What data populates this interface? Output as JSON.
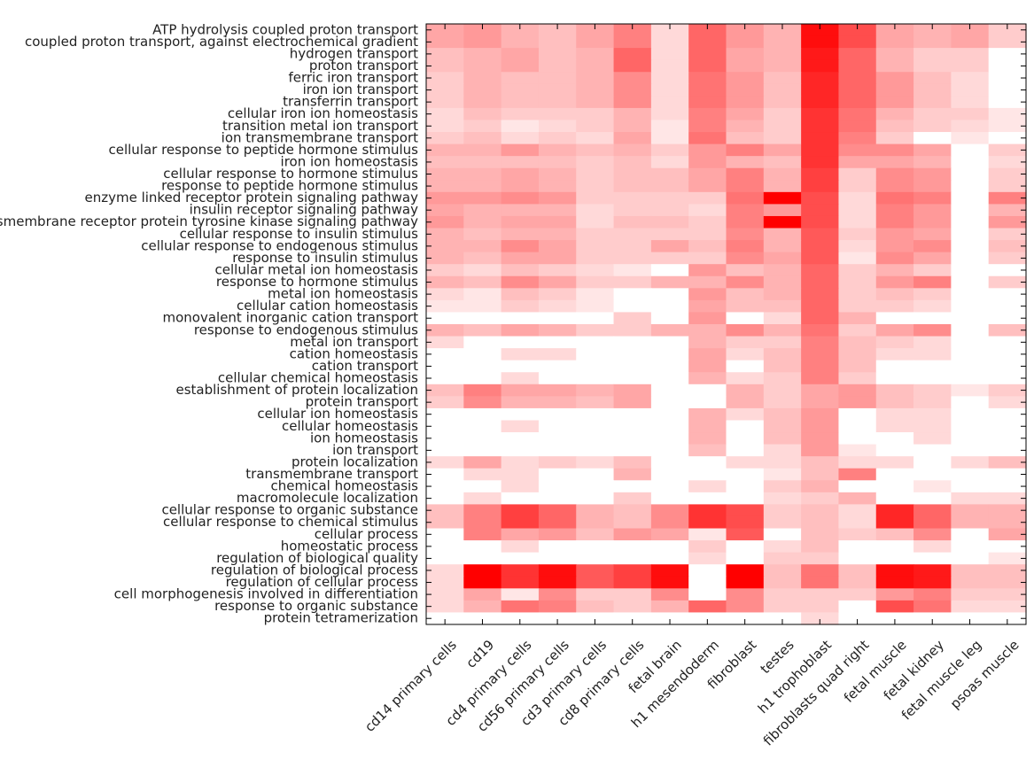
{
  "chart_data": {
    "type": "heatmap",
    "title": "",
    "xlabel": "",
    "ylabel": "",
    "colormap": {
      "low": "#ffffff",
      "high": "#ff0000"
    },
    "value_range": [
      0,
      1
    ],
    "rows": [
      "ATP hydrolysis coupled proton transport",
      "coupled proton transport, against electrochemical gradient",
      "hydrogen transport",
      "proton transport",
      "ferric iron transport",
      "iron ion transport",
      "transferrin transport",
      "cellular iron ion homeostasis",
      "transition metal ion transport",
      "ion transmembrane transport",
      "cellular response to peptide hormone stimulus",
      "iron ion homeostasis",
      "cellular response to hormone stimulus",
      "response to peptide hormone stimulus",
      "enzyme linked receptor protein signaling pathway",
      "insulin receptor signaling pathway",
      "transmembrane receptor protein tyrosine kinase signaling pathway",
      "cellular response to insulin stimulus",
      "cellular response to endogenous stimulus",
      "response to insulin stimulus",
      "cellular metal ion homeostasis",
      "response to hormone stimulus",
      "metal ion homeostasis",
      "cellular cation homeostasis",
      "monovalent inorganic cation transport",
      "response to endogenous stimulus",
      "metal ion transport",
      "cation homeostasis",
      "cation transport",
      "cellular chemical homeostasis",
      "establishment of protein localization",
      "protein transport",
      "cellular ion homeostasis",
      "cellular homeostasis",
      "ion homeostasis",
      "ion transport",
      "protein localization",
      "transmembrane transport",
      "chemical homeostasis",
      "macromolecule localization",
      "cellular response to organic substance",
      "cellular response to chemical stimulus",
      "cellular process",
      "homeostatic process",
      "regulation of biological quality",
      "regulation of biological process",
      "regulation of cellular process",
      "cell morphogenesis involved in differentiation",
      "response to organic substance",
      "protein tetramerization"
    ],
    "columns": [
      "cd14 primary cells",
      "cd19",
      "cd4 primary cells",
      "cd56 primary cells",
      "cd3 primary cells",
      "cd8 primary cells",
      "fetal brain",
      "h1 mesendoderm",
      "fibroblast",
      "testes",
      "h1 trophoblast",
      "fibroblasts quad right",
      "fetal muscle",
      "fetal kidney",
      "fetal muscle leg",
      "psoas muscle"
    ],
    "values": [
      [
        0.35,
        0.4,
        0.3,
        0.25,
        0.35,
        0.5,
        0.15,
        0.6,
        0.4,
        0.3,
        0.95,
        0.7,
        0.35,
        0.3,
        0.35,
        0.2
      ],
      [
        0.35,
        0.4,
        0.3,
        0.25,
        0.35,
        0.5,
        0.15,
        0.6,
        0.4,
        0.3,
        0.95,
        0.7,
        0.35,
        0.3,
        0.35,
        0.2
      ],
      [
        0.25,
        0.3,
        0.35,
        0.25,
        0.3,
        0.6,
        0.15,
        0.6,
        0.35,
        0.3,
        0.9,
        0.6,
        0.3,
        0.2,
        0.2,
        0.0
      ],
      [
        0.25,
        0.3,
        0.35,
        0.25,
        0.3,
        0.6,
        0.15,
        0.6,
        0.35,
        0.3,
        0.9,
        0.6,
        0.3,
        0.2,
        0.2,
        0.0
      ],
      [
        0.2,
        0.3,
        0.25,
        0.25,
        0.3,
        0.45,
        0.15,
        0.55,
        0.4,
        0.25,
        0.85,
        0.6,
        0.4,
        0.25,
        0.15,
        0.0
      ],
      [
        0.2,
        0.3,
        0.25,
        0.25,
        0.3,
        0.45,
        0.15,
        0.55,
        0.4,
        0.25,
        0.85,
        0.6,
        0.4,
        0.25,
        0.15,
        0.0
      ],
      [
        0.2,
        0.3,
        0.25,
        0.25,
        0.3,
        0.45,
        0.15,
        0.55,
        0.4,
        0.25,
        0.85,
        0.6,
        0.4,
        0.25,
        0.15,
        0.0
      ],
      [
        0.15,
        0.25,
        0.2,
        0.2,
        0.2,
        0.3,
        0.15,
        0.5,
        0.35,
        0.2,
        0.8,
        0.55,
        0.3,
        0.2,
        0.2,
        0.1
      ],
      [
        0.15,
        0.2,
        0.1,
        0.15,
        0.2,
        0.3,
        0.1,
        0.5,
        0.3,
        0.2,
        0.8,
        0.55,
        0.25,
        0.2,
        0.15,
        0.1
      ],
      [
        0.2,
        0.25,
        0.15,
        0.2,
        0.15,
        0.35,
        0.1,
        0.55,
        0.25,
        0.2,
        0.8,
        0.5,
        0.2,
        0.0,
        0.1,
        0.0
      ],
      [
        0.3,
        0.3,
        0.4,
        0.3,
        0.25,
        0.3,
        0.2,
        0.4,
        0.5,
        0.35,
        0.8,
        0.45,
        0.45,
        0.35,
        0.0,
        0.2
      ],
      [
        0.25,
        0.25,
        0.25,
        0.25,
        0.2,
        0.25,
        0.15,
        0.4,
        0.3,
        0.25,
        0.8,
        0.35,
        0.35,
        0.3,
        0.0,
        0.15
      ],
      [
        0.3,
        0.3,
        0.35,
        0.3,
        0.2,
        0.25,
        0.25,
        0.35,
        0.5,
        0.3,
        0.75,
        0.2,
        0.45,
        0.4,
        0.0,
        0.2
      ],
      [
        0.3,
        0.3,
        0.35,
        0.3,
        0.2,
        0.25,
        0.25,
        0.35,
        0.5,
        0.3,
        0.75,
        0.2,
        0.45,
        0.4,
        0.0,
        0.2
      ],
      [
        0.4,
        0.4,
        0.45,
        0.4,
        0.2,
        0.2,
        0.2,
        0.2,
        0.55,
        1.0,
        0.7,
        0.15,
        0.55,
        0.5,
        0.0,
        0.5
      ],
      [
        0.35,
        0.3,
        0.3,
        0.3,
        0.15,
        0.2,
        0.2,
        0.15,
        0.5,
        0.4,
        0.7,
        0.15,
        0.5,
        0.4,
        0.0,
        0.3
      ],
      [
        0.4,
        0.3,
        0.35,
        0.35,
        0.15,
        0.25,
        0.25,
        0.2,
        0.5,
        1.0,
        0.7,
        0.15,
        0.5,
        0.4,
        0.0,
        0.4
      ],
      [
        0.3,
        0.25,
        0.3,
        0.3,
        0.2,
        0.2,
        0.2,
        0.2,
        0.45,
        0.3,
        0.65,
        0.2,
        0.4,
        0.35,
        0.0,
        0.2
      ],
      [
        0.3,
        0.3,
        0.45,
        0.35,
        0.2,
        0.2,
        0.35,
        0.25,
        0.5,
        0.3,
        0.65,
        0.15,
        0.4,
        0.45,
        0.0,
        0.25
      ],
      [
        0.3,
        0.25,
        0.35,
        0.35,
        0.2,
        0.2,
        0.2,
        0.2,
        0.45,
        0.35,
        0.65,
        0.1,
        0.45,
        0.35,
        0.0,
        0.2
      ],
      [
        0.2,
        0.15,
        0.25,
        0.2,
        0.15,
        0.1,
        0.0,
        0.4,
        0.25,
        0.3,
        0.6,
        0.2,
        0.3,
        0.2,
        0.0,
        0.0
      ],
      [
        0.3,
        0.25,
        0.45,
        0.35,
        0.2,
        0.2,
        0.3,
        0.3,
        0.45,
        0.3,
        0.6,
        0.2,
        0.4,
        0.5,
        0.0,
        0.2
      ],
      [
        0.15,
        0.1,
        0.25,
        0.2,
        0.1,
        0.0,
        0.0,
        0.4,
        0.25,
        0.3,
        0.6,
        0.2,
        0.25,
        0.2,
        0.0,
        0.0
      ],
      [
        0.1,
        0.1,
        0.2,
        0.15,
        0.1,
        0.0,
        0.0,
        0.35,
        0.25,
        0.25,
        0.6,
        0.2,
        0.2,
        0.15,
        0.0,
        0.0
      ],
      [
        0.0,
        0.0,
        0.0,
        0.0,
        0.0,
        0.2,
        0.0,
        0.4,
        0.0,
        0.15,
        0.6,
        0.3,
        0.0,
        0.0,
        0.0,
        0.0
      ],
      [
        0.3,
        0.25,
        0.35,
        0.3,
        0.2,
        0.2,
        0.3,
        0.3,
        0.45,
        0.3,
        0.55,
        0.2,
        0.35,
        0.45,
        0.0,
        0.25
      ],
      [
        0.15,
        0.0,
        0.0,
        0.0,
        0.0,
        0.0,
        0.0,
        0.3,
        0.2,
        0.2,
        0.5,
        0.25,
        0.2,
        0.15,
        0.0,
        0.0
      ],
      [
        0.0,
        0.0,
        0.15,
        0.15,
        0.0,
        0.0,
        0.0,
        0.35,
        0.15,
        0.25,
        0.5,
        0.25,
        0.15,
        0.15,
        0.0,
        0.0
      ],
      [
        0.0,
        0.0,
        0.0,
        0.0,
        0.0,
        0.0,
        0.0,
        0.35,
        0.0,
        0.25,
        0.5,
        0.25,
        0.0,
        0.0,
        0.0,
        0.0
      ],
      [
        0.0,
        0.0,
        0.15,
        0.0,
        0.0,
        0.0,
        0.0,
        0.3,
        0.15,
        0.2,
        0.5,
        0.2,
        0.0,
        0.0,
        0.0,
        0.0
      ],
      [
        0.25,
        0.5,
        0.35,
        0.35,
        0.3,
        0.35,
        0.0,
        0.0,
        0.3,
        0.2,
        0.35,
        0.4,
        0.25,
        0.2,
        0.1,
        0.2
      ],
      [
        0.2,
        0.45,
        0.3,
        0.3,
        0.25,
        0.35,
        0.0,
        0.0,
        0.3,
        0.2,
        0.35,
        0.4,
        0.25,
        0.2,
        0.0,
        0.15
      ],
      [
        0.0,
        0.0,
        0.0,
        0.0,
        0.0,
        0.0,
        0.0,
        0.3,
        0.15,
        0.25,
        0.4,
        0.0,
        0.15,
        0.15,
        0.0,
        0.0
      ],
      [
        0.0,
        0.0,
        0.15,
        0.0,
        0.0,
        0.0,
        0.0,
        0.3,
        0.0,
        0.25,
        0.4,
        0.0,
        0.15,
        0.15,
        0.0,
        0.0
      ],
      [
        0.0,
        0.0,
        0.0,
        0.0,
        0.0,
        0.0,
        0.0,
        0.3,
        0.0,
        0.25,
        0.4,
        0.0,
        0.0,
        0.15,
        0.0,
        0.0
      ],
      [
        0.0,
        0.0,
        0.0,
        0.0,
        0.0,
        0.0,
        0.0,
        0.25,
        0.0,
        0.15,
        0.4,
        0.1,
        0.0,
        0.0,
        0.0,
        0.0
      ],
      [
        0.15,
        0.35,
        0.15,
        0.2,
        0.15,
        0.25,
        0.0,
        0.0,
        0.15,
        0.15,
        0.25,
        0.15,
        0.15,
        0.0,
        0.15,
        0.25
      ],
      [
        0.0,
        0.15,
        0.15,
        0.0,
        0.0,
        0.3,
        0.0,
        0.0,
        0.0,
        0.1,
        0.25,
        0.5,
        0.0,
        0.0,
        0.0,
        0.0
      ],
      [
        0.0,
        0.0,
        0.15,
        0.0,
        0.0,
        0.0,
        0.0,
        0.15,
        0.0,
        0.2,
        0.3,
        0.0,
        0.0,
        0.1,
        0.0,
        0.0
      ],
      [
        0.0,
        0.15,
        0.0,
        0.0,
        0.0,
        0.2,
        0.0,
        0.0,
        0.0,
        0.15,
        0.2,
        0.3,
        0.0,
        0.0,
        0.15,
        0.15
      ],
      [
        0.25,
        0.5,
        0.75,
        0.6,
        0.3,
        0.25,
        0.45,
        0.8,
        0.7,
        0.2,
        0.25,
        0.15,
        0.85,
        0.6,
        0.3,
        0.3
      ],
      [
        0.25,
        0.5,
        0.75,
        0.6,
        0.3,
        0.25,
        0.45,
        0.8,
        0.7,
        0.2,
        0.25,
        0.15,
        0.85,
        0.6,
        0.3,
        0.3
      ],
      [
        0.0,
        0.5,
        0.35,
        0.4,
        0.25,
        0.4,
        0.35,
        0.1,
        0.65,
        0.0,
        0.25,
        0.2,
        0.25,
        0.45,
        0.0,
        0.35
      ],
      [
        0.0,
        0.0,
        0.15,
        0.0,
        0.0,
        0.0,
        0.0,
        0.2,
        0.0,
        0.15,
        0.25,
        0.0,
        0.0,
        0.15,
        0.0,
        0.0
      ],
      [
        0.0,
        0.0,
        0.0,
        0.0,
        0.0,
        0.0,
        0.0,
        0.15,
        0.0,
        0.2,
        0.2,
        0.0,
        0.0,
        0.0,
        0.0,
        0.1
      ],
      [
        0.15,
        1.0,
        0.8,
        0.95,
        0.65,
        0.75,
        0.95,
        0.0,
        1.0,
        0.25,
        0.55,
        0.25,
        0.95,
        0.9,
        0.25,
        0.25
      ],
      [
        0.15,
        1.0,
        0.8,
        0.95,
        0.65,
        0.75,
        0.95,
        0.0,
        1.0,
        0.25,
        0.55,
        0.25,
        0.95,
        0.9,
        0.25,
        0.25
      ],
      [
        0.15,
        0.35,
        0.1,
        0.45,
        0.2,
        0.2,
        0.45,
        0.0,
        0.45,
        0.2,
        0.2,
        0.2,
        0.4,
        0.5,
        0.2,
        0.2
      ],
      [
        0.15,
        0.3,
        0.55,
        0.5,
        0.25,
        0.2,
        0.3,
        0.6,
        0.45,
        0.2,
        0.2,
        0.0,
        0.7,
        0.55,
        0.15,
        0.15
      ],
      [
        0.0,
        0.0,
        0.0,
        0.0,
        0.0,
        0.0,
        0.0,
        0.0,
        0.0,
        0.0,
        0.15,
        0.0,
        0.0,
        0.0,
        0.0,
        0.0
      ]
    ]
  }
}
